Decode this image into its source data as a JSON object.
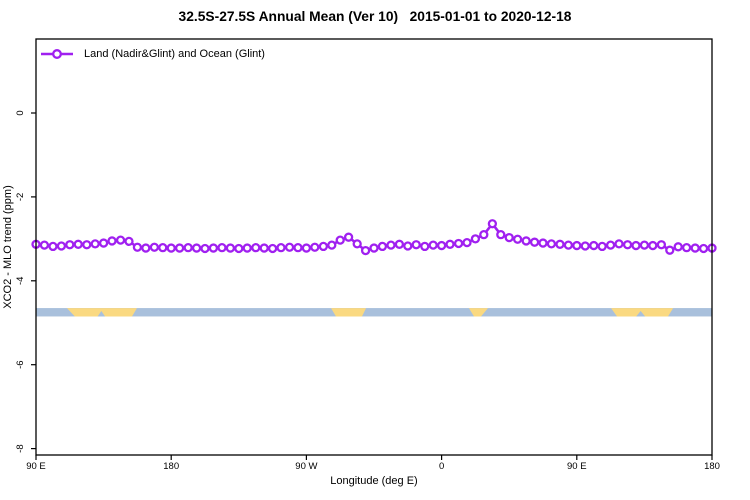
{
  "title": "32.5S-27.5S Annual Mean (Ver 10)   2015-01-01 to 2020-12-18",
  "legend": {
    "label": "Land (Nadir&Glint) and Ocean (Glint)"
  },
  "colors": {
    "line": "#A020F0",
    "marker_fill": "#ffffff",
    "ocean_band": "#A9C0DC",
    "land_band": "#FAD981",
    "axis": "#000000"
  },
  "axes": {
    "x": {
      "label": "Longitude (deg E)",
      "range_deg_continuous": [
        90,
        540
      ],
      "ticks": [
        {
          "lon": 90,
          "label": "90 E"
        },
        {
          "lon": 180,
          "label": "180"
        },
        {
          "lon": 270,
          "label": "90 W"
        },
        {
          "lon": 360,
          "label": "0"
        },
        {
          "lon": 450,
          "label": "90 E"
        },
        {
          "lon": 540,
          "label": "180"
        }
      ]
    },
    "y": {
      "label": "XCO2 - MLO trend (ppm)",
      "range": [
        -8.2,
        1.8
      ],
      "ticks": [
        {
          "v": 0,
          "label": "0"
        },
        {
          "v": -2,
          "label": "-2"
        },
        {
          "v": -4,
          "label": "-4"
        },
        {
          "v": -6,
          "label": "-6"
        },
        {
          "v": -8,
          "label": "-8"
        }
      ]
    }
  },
  "chart_data": {
    "type": "line",
    "title": "32.5S-27.5S Annual Mean (Ver 10)   2015-01-01 to 2020-12-18",
    "xlabel": "Longitude (deg E)",
    "ylabel": "XCO2 - MLO trend (ppm)",
    "ylim": [
      -8.2,
      1.8
    ],
    "grid": false,
    "legend_position": "top-left",
    "series_name": "Land (Nadir&Glint) and Ocean (Glint)",
    "x": [
      90,
      95.6,
      101.3,
      106.9,
      112.5,
      118.1,
      123.8,
      129.4,
      135,
      140.6,
      146.3,
      151.9,
      157.5,
      163.1,
      168.8,
      174.4,
      180,
      185.6,
      191.3,
      196.9,
      202.5,
      208.1,
      213.8,
      219.4,
      225,
      230.6,
      236.3,
      241.9,
      247.5,
      253.1,
      258.8,
      264.4,
      270,
      275.6,
      281.3,
      286.9,
      292.5,
      298.1,
      303.8,
      309.4,
      315,
      320.6,
      326.3,
      331.9,
      337.5,
      343.1,
      348.8,
      354.4,
      360,
      365.6,
      371.3,
      376.9,
      382.5,
      388.1,
      393.8,
      399.4,
      405,
      410.6,
      416.3,
      421.9,
      427.5,
      433.1,
      438.8,
      444.4,
      450,
      455.6,
      461.3,
      466.9,
      472.5,
      478.1,
      483.8,
      489.4,
      495,
      500.6,
      506.3,
      511.9,
      517.5,
      523.1,
      528.8,
      534.4,
      540
    ],
    "values": [
      -3.13,
      -3.15,
      -3.18,
      -3.17,
      -3.14,
      -3.13,
      -3.14,
      -3.12,
      -3.1,
      -3.05,
      -3.03,
      -3.06,
      -3.2,
      -3.22,
      -3.2,
      -3.21,
      -3.22,
      -3.22,
      -3.21,
      -3.22,
      -3.23,
      -3.22,
      -3.21,
      -3.22,
      -3.23,
      -3.22,
      -3.21,
      -3.22,
      -3.23,
      -3.21,
      -3.2,
      -3.21,
      -3.22,
      -3.2,
      -3.18,
      -3.15,
      -3.03,
      -2.96,
      -3.12,
      -3.28,
      -3.22,
      -3.18,
      -3.15,
      -3.13,
      -3.17,
      -3.14,
      -3.18,
      -3.15,
      -3.16,
      -3.13,
      -3.11,
      -3.09,
      -3.0,
      -2.9,
      -2.64,
      -2.9,
      -2.97,
      -3.01,
      -3.05,
      -3.08,
      -3.1,
      -3.12,
      -3.13,
      -3.15,
      -3.16,
      -3.17,
      -3.16,
      -3.18,
      -3.15,
      -3.12,
      -3.14,
      -3.16,
      -3.15,
      -3.16,
      -3.14,
      -3.27,
      -3.19,
      -3.21,
      -3.22,
      -3.23,
      -3.22
    ],
    "surface_band": {
      "v_top": -4.65,
      "v_bottom": -4.85,
      "notch_apex_v": -4.72,
      "ocean_range_deg": [
        90,
        540
      ],
      "land_segments": [
        {
          "top": [
            110.6,
            157.2
          ],
          "bottom": [
            115.9,
            153.9
          ],
          "notch": [
            131.0,
            136.0
          ]
        },
        {
          "top": [
            286.4,
            309.7
          ],
          "bottom": [
            289.7,
            307.0
          ],
          "notch": null
        },
        {
          "top": [
            378.2,
            390.9
          ],
          "bottom": [
            381.6,
            386.2
          ],
          "notch": null
        },
        {
          "top": [
            472.8,
            514.1
          ],
          "bottom": [
            476.8,
            510.7
          ],
          "notch": [
            489.5,
            495.5
          ]
        }
      ]
    }
  }
}
